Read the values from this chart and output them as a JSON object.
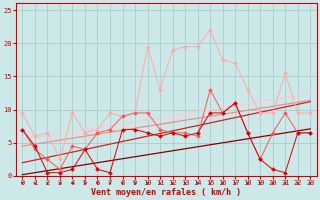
{
  "x": [
    0,
    1,
    2,
    3,
    4,
    5,
    6,
    7,
    8,
    9,
    10,
    11,
    12,
    13,
    14,
    15,
    16,
    17,
    18,
    19,
    20,
    21,
    22,
    23
  ],
  "line_pink_jagged": [
    9.5,
    6.0,
    6.5,
    2.5,
    9.5,
    6.5,
    7.0,
    9.5,
    9.0,
    9.5,
    19.5,
    13.0,
    19.0,
    19.5,
    19.5,
    22.0,
    17.5,
    17.0,
    13.0,
    9.5,
    9.5,
    15.5,
    9.5,
    9.5
  ],
  "line_red_jagged": [
    7.0,
    4.0,
    2.5,
    1.0,
    4.5,
    4.0,
    6.5,
    7.0,
    9.0,
    9.5,
    9.5,
    7.0,
    6.5,
    6.5,
    6.0,
    13.0,
    9.5,
    11.0,
    6.5,
    2.5,
    6.5,
    9.5,
    6.5,
    6.5
  ],
  "line_dark_jagged": [
    7.0,
    4.5,
    0.5,
    0.5,
    1.0,
    4.0,
    1.0,
    0.5,
    7.0,
    7.0,
    6.5,
    6.0,
    6.5,
    6.0,
    6.5,
    9.5,
    9.5,
    11.0,
    6.5,
    2.5,
    1.0,
    0.5,
    6.5,
    6.5
  ],
  "trend_verydark": [
    0.2,
    0.5,
    0.8,
    1.1,
    1.4,
    1.7,
    2.0,
    2.3,
    2.6,
    2.9,
    3.2,
    3.5,
    3.8,
    4.1,
    4.4,
    4.7,
    5.0,
    5.3,
    5.6,
    5.9,
    6.2,
    6.5,
    6.8,
    7.1
  ],
  "trend_darkred": [
    2.0,
    2.4,
    2.8,
    3.2,
    3.6,
    4.0,
    4.4,
    4.8,
    5.2,
    5.6,
    6.0,
    6.4,
    6.8,
    7.2,
    7.6,
    8.0,
    8.4,
    8.8,
    9.2,
    9.6,
    10.0,
    10.4,
    10.8,
    11.2
  ],
  "trend_medred": [
    4.5,
    4.8,
    5.1,
    5.4,
    5.7,
    6.0,
    6.3,
    6.6,
    6.9,
    7.2,
    7.5,
    7.8,
    8.1,
    8.4,
    8.7,
    9.0,
    9.3,
    9.6,
    9.9,
    10.2,
    10.5,
    10.8,
    11.1,
    11.4
  ],
  "trend_lightpink": [
    5.5,
    5.8,
    6.1,
    6.4,
    6.7,
    7.0,
    7.3,
    7.6,
    7.9,
    8.2,
    8.5,
    8.8,
    9.1,
    9.4,
    9.7,
    10.0,
    10.3,
    10.6,
    10.9,
    11.2,
    11.5,
    11.8,
    12.1,
    12.4
  ],
  "color_pink": "#ffaaaa",
  "color_medred": "#ff5555",
  "color_darkred": "#dd0000",
  "color_verydark": "#aa0000",
  "color_trendlp": "#ffcccc",
  "color_trendmed": "#ff8888",
  "color_trenddark": "#cc2222",
  "color_trendvd": "#880000",
  "bg_color": "#cce8e8",
  "grid_color": "#aacccc",
  "text_color": "#cc0000",
  "xlabel": "Vent moyen/en rafales ( km/h )",
  "ylim": [
    0,
    26
  ],
  "xlim": [
    -0.5,
    23.5
  ],
  "yticks": [
    0,
    5,
    10,
    15,
    20,
    25
  ],
  "xticks": [
    0,
    1,
    2,
    3,
    4,
    5,
    6,
    7,
    8,
    9,
    10,
    11,
    12,
    13,
    14,
    15,
    16,
    17,
    18,
    19,
    20,
    21,
    22,
    23
  ]
}
